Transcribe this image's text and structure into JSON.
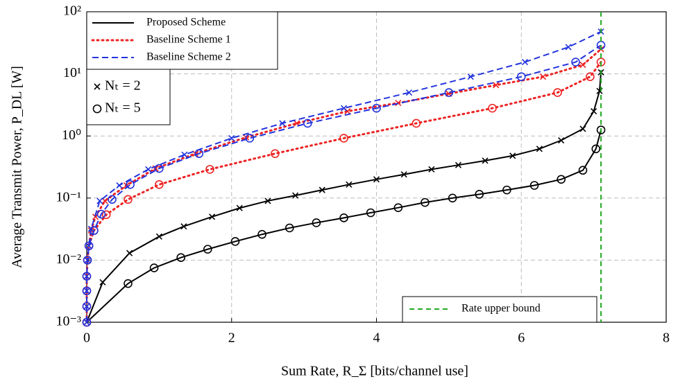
{
  "chart_data": {
    "type": "line",
    "xlabel": "Sum Rate, R_Σ [bits/channel use]",
    "ylabel": "Average Transmit Power, P_DL [W]",
    "xlim": [
      0,
      8
    ],
    "xticks": [
      0,
      2,
      4,
      6,
      8
    ],
    "ylim": [
      0.001,
      100
    ],
    "yticks": [
      {
        "value": 0.001,
        "label": "10⁻³"
      },
      {
        "value": 0.01,
        "label": "10⁻²"
      },
      {
        "value": 0.1,
        "label": "10⁻¹"
      },
      {
        "value": 1,
        "label": "10⁰"
      },
      {
        "value": 10,
        "label": "10¹"
      },
      {
        "value": 100,
        "label": "10²"
      }
    ],
    "log_y": true,
    "grid": true,
    "series": [
      {
        "name": "Proposed Scheme",
        "color": "#000000",
        "dash": "solid",
        "marker": "x",
        "x": [
          0,
          0.22,
          0.59,
          1.0,
          1.34,
          1.73,
          2.11,
          2.5,
          2.88,
          3.25,
          3.62,
          4.0,
          4.38,
          4.76,
          5.13,
          5.5,
          5.88,
          6.25,
          6.55,
          6.85,
          7.0,
          7.08,
          7.1
        ],
        "values": [
          0.001,
          0.0044,
          0.013,
          0.024,
          0.035,
          0.05,
          0.069,
          0.09,
          0.11,
          0.135,
          0.165,
          0.2,
          0.24,
          0.29,
          0.34,
          0.4,
          0.48,
          0.62,
          0.85,
          1.3,
          2.5,
          5.3,
          10.6
        ]
      },
      {
        "name": "Proposed Scheme",
        "color": "#000000",
        "dash": "solid",
        "marker": "o",
        "x": [
          0,
          0.57,
          0.93,
          1.3,
          1.67,
          2.05,
          2.42,
          2.8,
          3.17,
          3.55,
          3.92,
          4.3,
          4.67,
          5.05,
          5.42,
          5.8,
          6.18,
          6.55,
          6.85,
          7.03,
          7.1
        ],
        "values": [
          0.001,
          0.0042,
          0.0075,
          0.011,
          0.015,
          0.02,
          0.026,
          0.033,
          0.04,
          0.048,
          0.058,
          0.07,
          0.085,
          0.1,
          0.115,
          0.135,
          0.16,
          0.2,
          0.28,
          0.62,
          1.25
        ]
      },
      {
        "name": "Baseline Scheme 1",
        "color": "#ee2222",
        "dash": "dotted",
        "marker": "x",
        "x": [
          0,
          0,
          0,
          0,
          0.01,
          0.03,
          0.06,
          0.12,
          0.25,
          0.55,
          0.95,
          1.5,
          2.2,
          2.9,
          3.6,
          4.3,
          5.0,
          5.65,
          6.3,
          6.85,
          7.1
        ],
        "values": [
          0.001,
          0.0018,
          0.0032,
          0.0055,
          0.01,
          0.017,
          0.03,
          0.05,
          0.09,
          0.16,
          0.3,
          0.52,
          0.95,
          1.6,
          2.5,
          3.4,
          4.8,
          6.6,
          9,
          14,
          25
        ]
      },
      {
        "name": "Baseline Scheme 1",
        "color": "#ee2222",
        "dash": "dotted",
        "marker": "o",
        "x": [
          0,
          0,
          0,
          0,
          0.01,
          0.03,
          0.1,
          0.27,
          0.57,
          1.0,
          1.7,
          2.6,
          3.55,
          4.55,
          5.6,
          6.5,
          6.95,
          7.1
        ],
        "values": [
          0.001,
          0.0018,
          0.0032,
          0.0055,
          0.01,
          0.017,
          0.03,
          0.054,
          0.095,
          0.165,
          0.29,
          0.52,
          0.92,
          1.6,
          2.8,
          5.0,
          9.0,
          15.5
        ]
      },
      {
        "name": "Baseline Scheme 2",
        "color": "#2233dd",
        "dash": "dashed",
        "marker": "x",
        "x": [
          0,
          0,
          0,
          0,
          0.01,
          0.03,
          0.06,
          0.18,
          0.45,
          0.85,
          1.35,
          2.0,
          2.7,
          3.55,
          4.45,
          5.3,
          6.05,
          6.65,
          7.1
        ],
        "values": [
          0.001,
          0.0018,
          0.0032,
          0.0055,
          0.01,
          0.017,
          0.032,
          0.09,
          0.16,
          0.29,
          0.5,
          0.92,
          1.6,
          2.8,
          5.0,
          9.0,
          15.5,
          27,
          48
        ]
      },
      {
        "name": "Baseline Scheme 2",
        "color": "#2233dd",
        "dash": "dashed",
        "marker": "o",
        "x": [
          0,
          0,
          0,
          0,
          0.01,
          0.03,
          0.1,
          0.2,
          0.35,
          0.6,
          1.0,
          1.55,
          2.25,
          3.05,
          4.0,
          5.0,
          6.0,
          6.75,
          7.1
        ],
        "values": [
          0.001,
          0.0018,
          0.0032,
          0.0055,
          0.01,
          0.017,
          0.03,
          0.055,
          0.095,
          0.165,
          0.3,
          0.52,
          0.92,
          1.6,
          2.8,
          5.0,
          9.0,
          15.5,
          29
        ]
      }
    ],
    "marker_legend": [
      {
        "marker": "x",
        "label": "Nₜ = 2"
      },
      {
        "marker": "o",
        "label": "Nₜ = 5"
      }
    ],
    "bound": {
      "name": "Rate upper bound",
      "x": 7.1,
      "color": "#22aa22"
    }
  }
}
